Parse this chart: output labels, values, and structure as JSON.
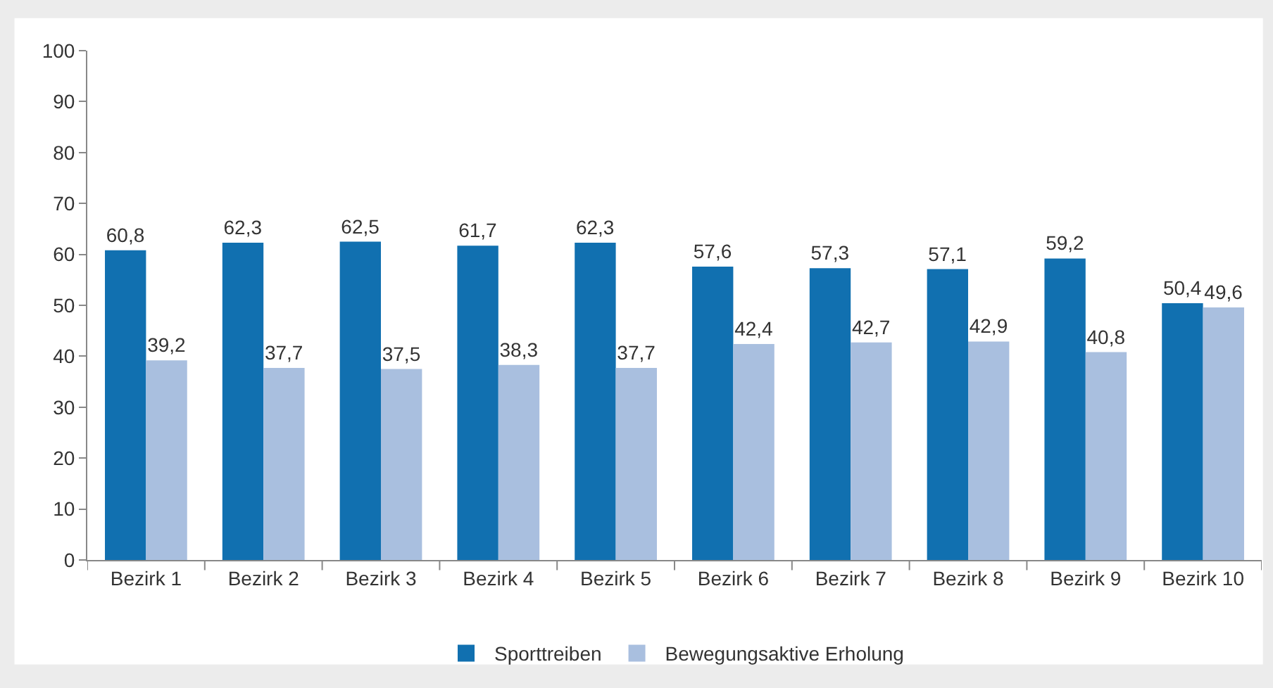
{
  "chart_data": {
    "type": "bar",
    "categories": [
      "Bezirk 1",
      "Bezirk 2",
      "Bezirk 3",
      "Bezirk 4",
      "Bezirk 5",
      "Bezirk 6",
      "Bezirk 7",
      "Bezirk 8",
      "Bezirk 9",
      "Bezirk 10"
    ],
    "series": [
      {
        "name": "Sporttreiben",
        "color": "#1170b0",
        "values": [
          60.8,
          62.3,
          62.5,
          61.7,
          62.3,
          57.6,
          57.3,
          57.1,
          59.2,
          50.4
        ],
        "value_labels": [
          "60,8",
          "62,3",
          "62,5",
          "61,7",
          "62,3",
          "57,6",
          "57,3",
          "57,1",
          "59,2",
          "50,4"
        ]
      },
      {
        "name": "Bewegungsaktive Erholung",
        "color": "#a9bfdf",
        "values": [
          39.2,
          37.7,
          37.5,
          38.3,
          37.7,
          42.4,
          42.7,
          42.9,
          40.8,
          49.6
        ],
        "value_labels": [
          "39,2",
          "37,7",
          "37,5",
          "38,3",
          "37,7",
          "42,4",
          "42,7",
          "42,9",
          "40,8",
          "49,6"
        ]
      }
    ],
    "ylim": [
      0,
      100
    ],
    "yticks": [
      0,
      10,
      20,
      30,
      40,
      50,
      60,
      70,
      80,
      90,
      100
    ],
    "legend": "bottom"
  }
}
